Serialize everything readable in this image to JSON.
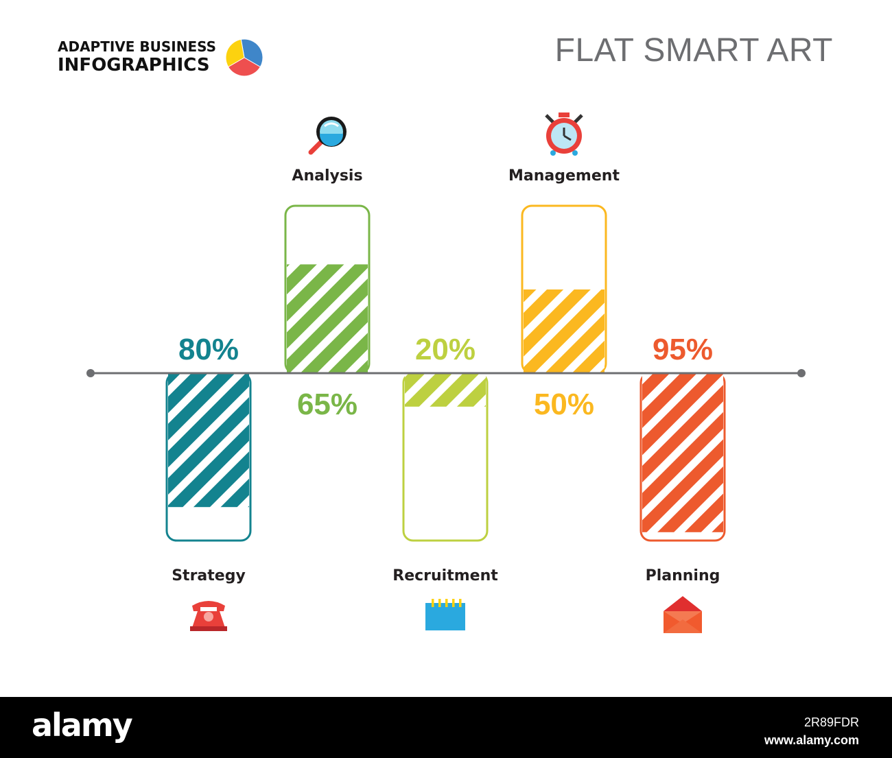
{
  "brand": {
    "line1": "ADAPTIVE BUSINESS",
    "line2": "INFOGRAPHICS",
    "pie_colors": [
      "#3f86c9",
      "#ee4f4f",
      "#fcd20f"
    ]
  },
  "title": "FLAT SMART ART",
  "chart_data": {
    "type": "bar",
    "categories": [
      "Strategy",
      "Analysis",
      "Recruitment",
      "Management",
      "Planning"
    ],
    "values": [
      80,
      65,
      20,
      50,
      95
    ],
    "value_labels": [
      "80%",
      "65%",
      "20%",
      "50%",
      "95%"
    ],
    "direction": [
      "down",
      "up",
      "down",
      "up",
      "down"
    ],
    "colors": [
      "#13838f",
      "#7ab648",
      "#bdd040",
      "#fbb820",
      "#ed5a2e"
    ],
    "icons": [
      "telephone-icon",
      "magnifier-icon",
      "notepad-icon",
      "alarm-clock-icon",
      "envelope-icon"
    ],
    "ylim": [
      0,
      100
    ],
    "fill_pattern": "diagonal-stripes"
  },
  "footer": {
    "logo": "alamy",
    "image_id": "2R89FDR",
    "url": "www.alamy.com"
  }
}
